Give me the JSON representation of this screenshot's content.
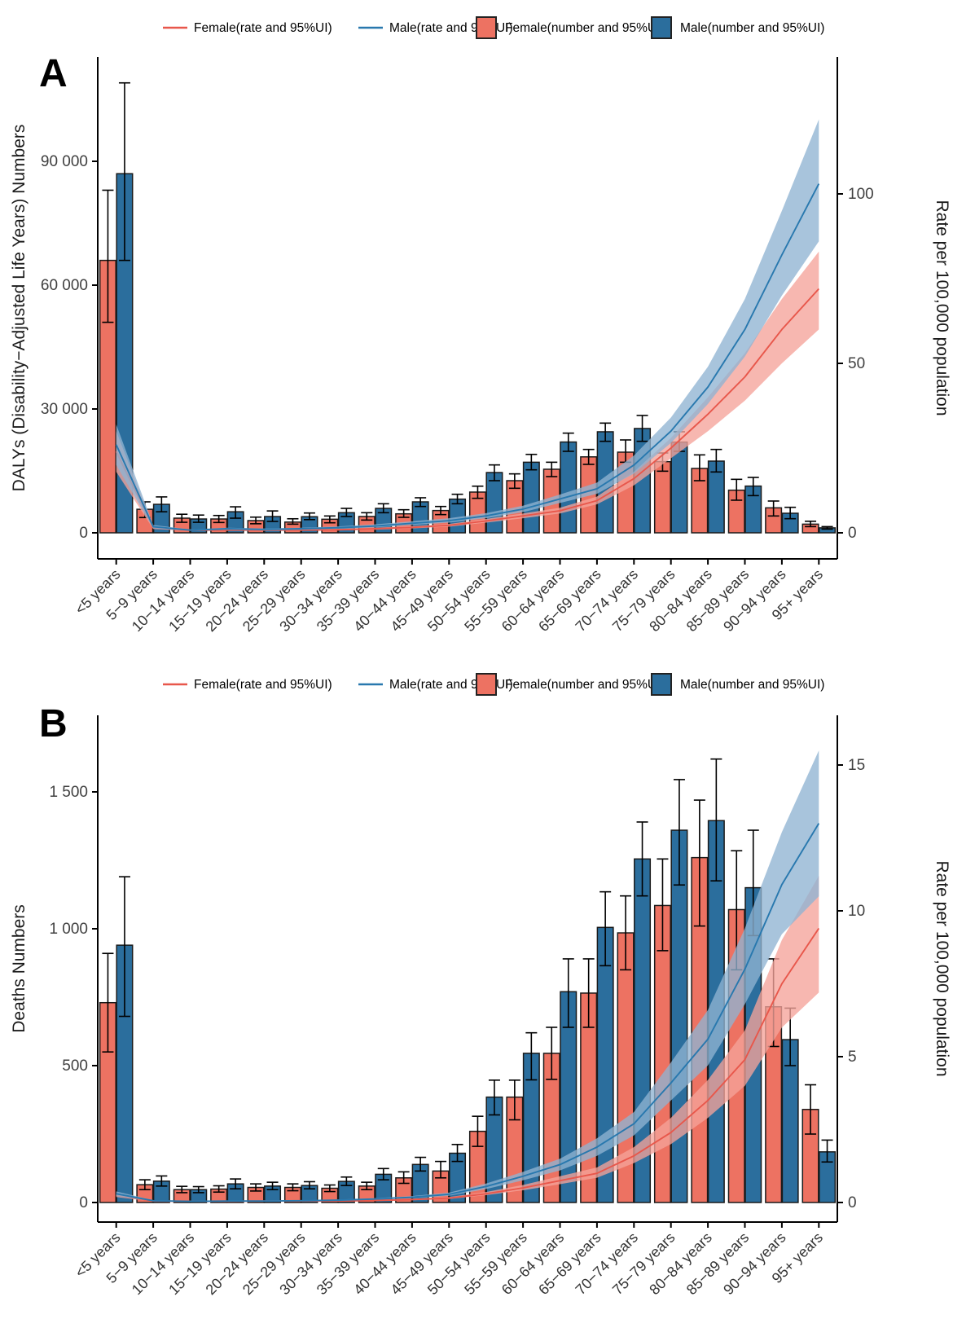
{
  "figure": {
    "panel_letters": [
      "A",
      "B"
    ],
    "colors": {
      "female_bar": "#ED7262",
      "male_bar": "#2B6E9D",
      "female_line": "#E8574B",
      "male_line": "#2878AE",
      "female_band": "#F5A39A",
      "male_band": "#8FB3D2",
      "bar_stroke": "#1A1A1A",
      "axis": "#000000",
      "text": "#333333"
    },
    "legend": {
      "items": [
        {
          "label": "Female(rate and 95%UI)",
          "symbol": "line",
          "color_key": "female_line"
        },
        {
          "label": "Male(rate and 95%UI)",
          "symbol": "line",
          "color_key": "male_line"
        },
        {
          "label": "Female(number and 95%UI)",
          "symbol": "rect",
          "color_key": "female_bar"
        },
        {
          "label": "Male(number and 95%UI)",
          "symbol": "rect",
          "color_key": "male_bar"
        }
      ]
    }
  },
  "chart_data": [
    {
      "panel": "A",
      "type": "bar+line",
      "categories": [
        "<5 years",
        "5−9 years",
        "10−14 years",
        "15−19 years",
        "20−24 years",
        "25−29 years",
        "30−34 years",
        "35−39 years",
        "40−44 years",
        "45−49 years",
        "50−54 years",
        "55−59 years",
        "60−64 years",
        "65−69 years",
        "70−74 years",
        "75−79 years",
        "80−84 years",
        "85−89 years",
        "90−94 years",
        "95+ years"
      ],
      "ylabel_left": "DALYs (Disability−Adjusted Life Years) Numbers",
      "ylabel_right": "Rate per 100,000 population",
      "left_ticks": [
        [
          0,
          "0"
        ],
        [
          30000,
          "30 000"
        ],
        [
          60000,
          "60 000"
        ],
        [
          90000,
          "90 000"
        ]
      ],
      "right_ticks": [
        [
          0,
          "0"
        ],
        [
          50,
          "50"
        ],
        [
          100,
          "100"
        ]
      ],
      "ylim_left": [
        0,
        115000
      ],
      "ylim_right": [
        0,
        140
      ],
      "bars": {
        "female": {
          "name": "Female(number and 95%UI)",
          "values": [
            66000,
            5700,
            3550,
            3350,
            2960,
            2600,
            3290,
            3950,
            4600,
            5400,
            9870,
            12630,
            15400,
            18400,
            19540,
            17240,
            15600,
            10330,
            6050,
            2100
          ],
          "lo": [
            51000,
            3700,
            2550,
            2500,
            2200,
            2100,
            2430,
            3090,
            3750,
            4410,
            8360,
            10790,
            13620,
            16580,
            17100,
            14930,
            12630,
            7900,
            4080,
            1500
          ],
          "hi": [
            83000,
            7500,
            4500,
            4200,
            3800,
            3400,
            4080,
            4870,
            5590,
            6380,
            11300,
            14280,
            17100,
            20200,
            22500,
            19340,
            18880,
            12960,
            7700,
            2800
          ]
        },
        "male": {
          "name": "Male(number and 95%UI)",
          "values": [
            87000,
            6900,
            3350,
            5100,
            3940,
            3900,
            4870,
            5920,
            7500,
            8160,
            14600,
            17100,
            22000,
            24480,
            25270,
            21980,
            17370,
            11320,
            4740,
            1200
          ],
          "lo": [
            66000,
            5100,
            2550,
            3550,
            2760,
            3200,
            3950,
            4870,
            6380,
            7040,
            12630,
            15260,
            19740,
            22170,
            22170,
            19740,
            14740,
            9010,
            3420,
            900
          ],
          "hi": [
            109000,
            8700,
            4300,
            6300,
            5300,
            4800,
            5920,
            7040,
            8490,
            9340,
            16450,
            19000,
            24150,
            26580,
            28430,
            24480,
            20200,
            13420,
            6180,
            1500
          ]
        }
      },
      "lines": {
        "female": {
          "name": "Female(rate and 95%UI)",
          "values": [
            24,
            1.5,
            0.8,
            0.8,
            0.8,
            0.8,
            0.9,
            1.2,
            1.6,
            2.2,
            3.5,
            5,
            6.5,
            9.5,
            16,
            25,
            35,
            46,
            60,
            72
          ],
          "lo": [
            18,
            1.1,
            0.6,
            0.6,
            0.6,
            0.6,
            0.7,
            0.9,
            1.3,
            1.8,
            3,
            4.3,
            5.7,
            8.4,
            14,
            22,
            30,
            39,
            50,
            60
          ],
          "hi": [
            30,
            2,
            1,
            1,
            1,
            1.1,
            1.2,
            1.5,
            2,
            2.6,
            4.1,
            5.7,
            7.4,
            10.7,
            18,
            28,
            40,
            53,
            69,
            83
          ]
        },
        "male": {
          "name": "Male(rate and 95%UI)",
          "values": [
            26,
            1.8,
            0.8,
            1.2,
            1,
            1.2,
            1.5,
            2,
            2.8,
            3.6,
            5,
            7,
            10,
            13,
            20,
            30,
            43,
            60,
            82,
            103
          ],
          "lo": [
            20,
            1.3,
            0.6,
            0.9,
            0.7,
            0.9,
            1.2,
            1.6,
            2.3,
            3,
            4.3,
            6.1,
            8.8,
            11.5,
            17.5,
            26.5,
            38,
            52,
            70,
            86
          ],
          "hi": [
            32,
            2.3,
            1,
            1.5,
            1.3,
            1.5,
            1.9,
            2.5,
            3.4,
            4.3,
            5.8,
            8,
            11.3,
            14.8,
            22.8,
            34,
            49,
            69,
            95,
            122
          ]
        }
      }
    },
    {
      "panel": "B",
      "type": "bar+line",
      "categories": [
        "<5 years",
        "5−9 years",
        "10−14 years",
        "15−19 years",
        "20−24 years",
        "25−29 years",
        "30−34 years",
        "35−39 years",
        "40−44 years",
        "45−49 years",
        "50−54 years",
        "55−59 years",
        "60−64 years",
        "65−69 years",
        "70−74 years",
        "75−79 years",
        "80−84 years",
        "85−89 years",
        "90−94 years",
        "95+ years"
      ],
      "ylabel_left": "Deaths Numbers",
      "ylabel_right": "Rate per 100,000 population",
      "left_ticks": [
        [
          0,
          "0"
        ],
        [
          500,
          "500"
        ],
        [
          1000,
          "1 000"
        ],
        [
          1500,
          "1 500"
        ]
      ],
      "right_ticks": [
        [
          0,
          "0"
        ],
        [
          5,
          "5"
        ],
        [
          10,
          "10"
        ],
        [
          15,
          "15"
        ]
      ],
      "ylim_left": [
        0,
        1780
      ],
      "ylim_right": [
        0,
        16.7
      ],
      "bars": {
        "female": {
          "name": "Female(number and 95%UI)",
          "values": [
            730,
            65,
            47,
            49,
            55,
            55,
            52,
            60,
            90,
            115,
            260,
            385,
            545,
            765,
            985,
            1085,
            1260,
            1070,
            715,
            340
          ],
          "lo": [
            550,
            47,
            36,
            38,
            42,
            43,
            40,
            47,
            70,
            90,
            205,
            302,
            450,
            640,
            850,
            920,
            1010,
            850,
            570,
            250
          ],
          "hi": [
            910,
            83,
            59,
            61,
            68,
            68,
            64,
            74,
            112,
            150,
            315,
            447,
            640,
            890,
            1120,
            1255,
            1470,
            1285,
            890,
            430
          ]
        },
        "male": {
          "name": "Male(number and 95%UI)",
          "values": [
            940,
            78,
            47,
            68,
            60,
            62,
            77,
            103,
            139,
            180,
            385,
            545,
            770,
            1005,
            1255,
            1360,
            1395,
            1150,
            595,
            185
          ],
          "lo": [
            680,
            60,
            36,
            50,
            47,
            50,
            62,
            83,
            115,
            150,
            320,
            448,
            640,
            865,
            1120,
            1160,
            1175,
            975,
            500,
            148
          ],
          "hi": [
            1190,
            97,
            58,
            86,
            74,
            76,
            93,
            124,
            165,
            212,
            447,
            620,
            890,
            1135,
            1390,
            1545,
            1620,
            1360,
            710,
            228
          ]
        }
      },
      "lines": {
        "female": {
          "name": "Female(rate and 95%UI)",
          "values": [
            0.25,
            0.05,
            0.04,
            0.04,
            0.05,
            0.05,
            0.05,
            0.07,
            0.1,
            0.15,
            0.3,
            0.5,
            0.75,
            1,
            1.6,
            2.4,
            3.5,
            4.9,
            7.5,
            9.4
          ],
          "lo": [
            0.19,
            0.03,
            0.03,
            0.03,
            0.04,
            0.04,
            0.04,
            0.05,
            0.08,
            0.12,
            0.25,
            0.42,
            0.63,
            0.85,
            1.35,
            2,
            2.9,
            4,
            6,
            7.2
          ],
          "hi": [
            0.31,
            0.07,
            0.05,
            0.05,
            0.06,
            0.06,
            0.07,
            0.09,
            0.13,
            0.19,
            0.36,
            0.6,
            0.9,
            1.2,
            1.9,
            2.9,
            4.2,
            5.9,
            9,
            11.2
          ]
        },
        "male": {
          "name": "Male(rate and 95%UI)",
          "values": [
            0.3,
            0.06,
            0.04,
            0.05,
            0.05,
            0.06,
            0.08,
            0.12,
            0.18,
            0.28,
            0.55,
            0.9,
            1.3,
            1.9,
            2.7,
            4.1,
            5.6,
            8,
            10.9,
            13
          ],
          "lo": [
            0.22,
            0.05,
            0.03,
            0.04,
            0.04,
            0.05,
            0.06,
            0.1,
            0.15,
            0.23,
            0.46,
            0.76,
            1.1,
            1.6,
            2.3,
            3.5,
            4.7,
            6.8,
            9.2,
            10.5
          ],
          "hi": [
            0.38,
            0.08,
            0.05,
            0.07,
            0.07,
            0.08,
            0.1,
            0.15,
            0.22,
            0.34,
            0.65,
            1.05,
            1.5,
            2.2,
            3.1,
            4.8,
            6.6,
            9.4,
            12.7,
            15.5
          ]
        }
      }
    }
  ]
}
